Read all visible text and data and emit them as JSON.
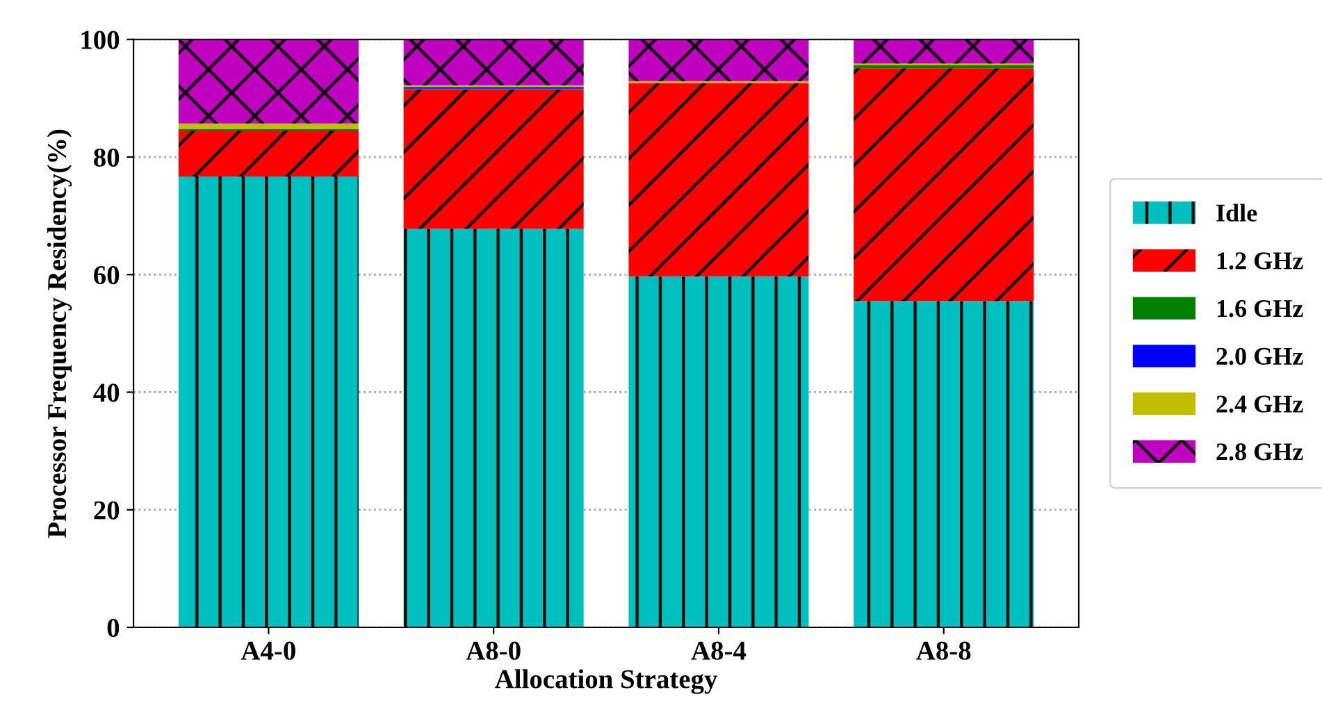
{
  "chart_data": {
    "type": "bar",
    "stacked": true,
    "xlabel": "Allocation Strategy",
    "ylabel": "Processor Frequency Residency(%)",
    "categories": [
      "A4-0",
      "A8-0",
      "A8-4",
      "A8-8"
    ],
    "series": [
      {
        "name": "Idle",
        "color": "#00bfbf",
        "values": [
          76.7,
          67.8,
          59.7,
          55.5
        ]
      },
      {
        "name": "1.2 GHz",
        "color": "#ff0000",
        "values": [
          7.8,
          23.7,
          32.9,
          39.6
        ]
      },
      {
        "name": "1.6 GHz",
        "color": "#008000",
        "values": [
          0.3,
          0.1,
          null,
          0.5
        ]
      },
      {
        "name": "2.0 GHz",
        "color": "#0000ff",
        "values": [
          null,
          0.3,
          null,
          null
        ]
      },
      {
        "name": "2.4 GHz",
        "color": "#bfbf00",
        "values": [
          0.9,
          0.3,
          0.3,
          0.3
        ]
      },
      {
        "name": "2.8 GHz",
        "color": "#bf00bf",
        "values": [
          14.2,
          7.8,
          7.0,
          4.1
        ]
      }
    ],
    "ylim": [
      0,
      100
    ],
    "yticks": [
      0,
      20,
      40,
      60,
      80,
      100
    ],
    "grid": "y",
    "legend": "right"
  }
}
